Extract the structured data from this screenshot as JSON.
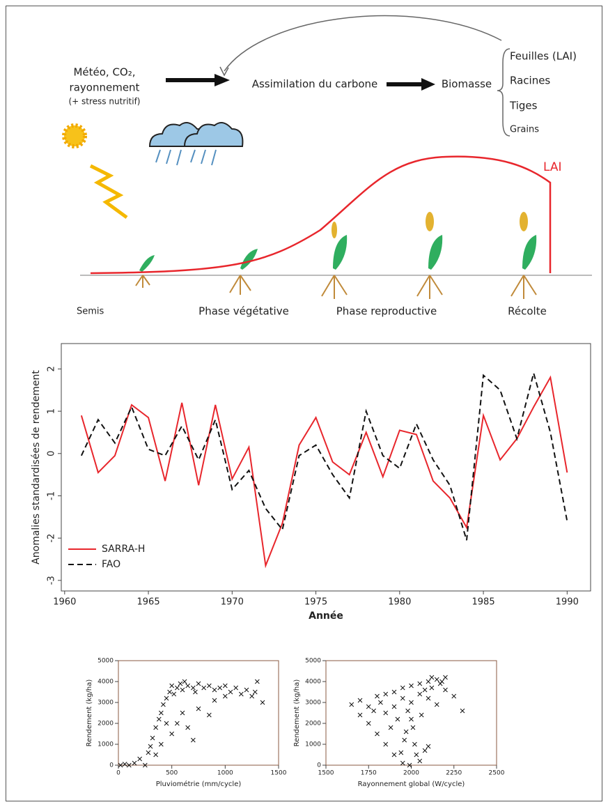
{
  "diagram": {
    "inputs": [
      "Météo, CO₂,",
      "rayonnement",
      "(+ stress nutritif)"
    ],
    "process": "Assimilation du carbone",
    "biomass": "Biomasse",
    "organs": [
      "Feuilles (LAI)",
      "Racines",
      "Tiges",
      "Grains"
    ],
    "curve_label": "LAI",
    "phases": [
      "Semis",
      "Phase végétative",
      "Phase reproductive",
      "Récolte"
    ]
  },
  "chart_data": [
    {
      "type": "line",
      "x_label": "Année",
      "y_label": "Anomalies standardisées de rendement",
      "x": [
        1961,
        1962,
        1963,
        1964,
        1965,
        1966,
        1967,
        1968,
        1969,
        1970,
        1971,
        1972,
        1973,
        1974,
        1975,
        1976,
        1977,
        1978,
        1979,
        1980,
        1981,
        1982,
        1983,
        1984,
        1985,
        1986,
        1987,
        1988,
        1989,
        1990
      ],
      "series": [
        {
          "name": "SARRA-H",
          "color": "#e8262c",
          "dash": false,
          "values": [
            0.9,
            -0.45,
            -0.05,
            1.15,
            0.85,
            -0.65,
            1.2,
            -0.75,
            1.15,
            -0.6,
            0.15,
            -2.65,
            -1.65,
            0.2,
            0.85,
            -0.2,
            -0.5,
            0.5,
            -0.55,
            0.55,
            0.45,
            -0.65,
            -1.05,
            -1.75,
            0.9,
            -0.15,
            0.35,
            1.1,
            1.8,
            -0.45
          ]
        },
        {
          "name": "FAO",
          "color": "#111111",
          "dash": true,
          "values": [
            -0.05,
            0.8,
            0.25,
            1.1,
            0.1,
            -0.05,
            0.65,
            -0.15,
            0.8,
            -0.85,
            -0.4,
            -1.3,
            -1.8,
            -0.05,
            0.2,
            -0.5,
            -1.05,
            1.0,
            -0.05,
            -0.35,
            0.7,
            -0.15,
            -0.75,
            -2.05,
            1.85,
            1.5,
            0.35,
            1.9,
            0.5,
            -1.6
          ]
        }
      ],
      "xlim": [
        1959.8,
        1991.4
      ],
      "xticks": [
        1960,
        1965,
        1970,
        1975,
        1980,
        1985,
        1990
      ],
      "ylim": [
        -3.25,
        2.6
      ],
      "yticks": [
        -3,
        -2,
        -1,
        0,
        1,
        2
      ],
      "legend": "lower-left"
    },
    {
      "type": "scatter",
      "x_label": "Pluviométrie (mm/cycle)",
      "y_label": "Rendement (kg/ha)",
      "color": "#111111",
      "x": [
        20,
        60,
        100,
        150,
        200,
        250,
        280,
        300,
        320,
        350,
        380,
        400,
        420,
        450,
        480,
        500,
        520,
        550,
        580,
        600,
        620,
        650,
        700,
        720,
        750,
        800,
        850,
        900,
        950,
        1000,
        1050,
        1100,
        1150,
        1200,
        1250,
        1300,
        1350,
        1280,
        500,
        550,
        600,
        650,
        700,
        750,
        850,
        400,
        350,
        450,
        900,
        1000
      ],
      "values": [
        0,
        50,
        0,
        100,
        300,
        0,
        600,
        900,
        1300,
        1800,
        2200,
        2500,
        2900,
        3200,
        3500,
        3800,
        3400,
        3700,
        3900,
        3600,
        4000,
        3800,
        3700,
        3500,
        3900,
        3700,
        3800,
        3600,
        3700,
        3800,
        3500,
        3700,
        3400,
        3600,
        3300,
        4000,
        3000,
        3500,
        1500,
        2000,
        2500,
        1800,
        1200,
        2700,
        2400,
        1000,
        500,
        2000,
        3100,
        3300
      ],
      "xlim": [
        0,
        1500
      ],
      "xticks": [
        0,
        500,
        1000,
        1500
      ],
      "ylim": [
        0,
        5000
      ],
      "yticks": [
        0,
        1000,
        2000,
        3000,
        4000,
        5000
      ]
    },
    {
      "type": "scatter",
      "x_label": "Rayonnement global (W/cycle)",
      "y_label": "Rendement (kg/ha)",
      "color": "#111111",
      "x": [
        1650,
        1700,
        1750,
        1800,
        1850,
        1900,
        1950,
        2000,
        2050,
        2100,
        2150,
        2200,
        2170,
        2120,
        2080,
        1750,
        1800,
        1850,
        1900,
        1950,
        1920,
        1980,
        2000,
        2010,
        2020,
        2030,
        1960,
        1990,
        2050,
        2060,
        2100,
        2150,
        2200,
        2250,
        2300,
        1850,
        1900,
        1950,
        1880,
        2000,
        1700,
        1780,
        2050,
        2120,
        1940,
        1970,
        2080,
        2100,
        2180,
        1820
      ],
      "values": [
        2900,
        3100,
        2800,
        3300,
        3400,
        3500,
        3700,
        3800,
        3900,
        4000,
        4100,
        4200,
        3900,
        3700,
        3600,
        2000,
        1500,
        1000,
        500,
        100,
        2200,
        2600,
        3000,
        1800,
        1000,
        500,
        1200,
        0,
        200,
        2400,
        3200,
        2900,
        3600,
        3300,
        2600,
        2500,
        2800,
        3200,
        1800,
        2200,
        2400,
        2600,
        3400,
        4200,
        600,
        1600,
        700,
        900,
        4000,
        3000
      ],
      "xlim": [
        1500,
        2500
      ],
      "xticks": [
        1500,
        1750,
        2000,
        2250,
        2500
      ],
      "ylim": [
        0,
        5000
      ],
      "yticks": [
        0,
        1000,
        2000,
        3000,
        4000,
        5000
      ]
    }
  ]
}
